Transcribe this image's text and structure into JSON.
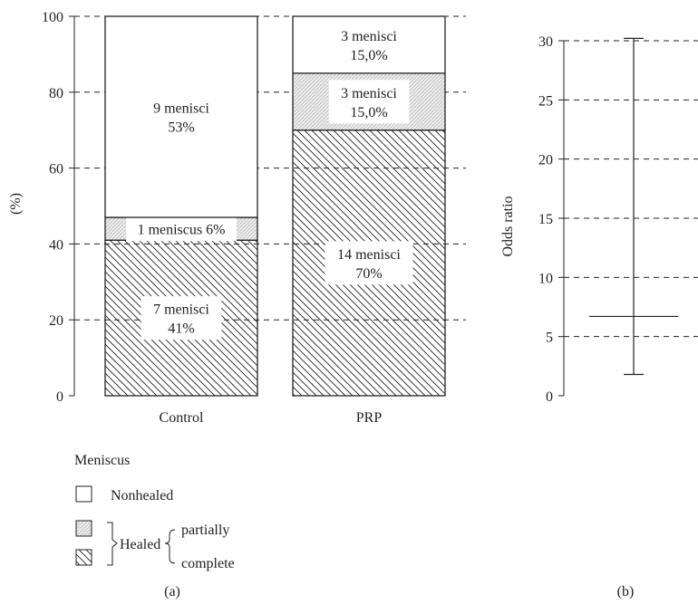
{
  "chart_data": [
    {
      "type": "bar",
      "stacked": true,
      "categories": [
        "Control",
        "PRP"
      ],
      "ylabel": "(%)",
      "ylim": [
        0,
        100
      ],
      "yticks": [
        0,
        20,
        40,
        60,
        80,
        100
      ],
      "grid": "dashed",
      "series": [
        {
          "key": "complete",
          "values": [
            41,
            70
          ],
          "labels": [
            [
              "7 menisci",
              "41%"
            ],
            [
              "14 menisci",
              "70%"
            ]
          ]
        },
        {
          "key": "partial",
          "values": [
            6,
            15
          ],
          "labels": [
            [
              "1 meniscus 6%"
            ],
            [
              "3 menisci",
              "15,0%"
            ]
          ]
        },
        {
          "key": "nonhealed",
          "values": [
            53,
            15
          ],
          "labels": [
            [
              "9 menisci",
              "53%"
            ],
            [
              "3 menisci",
              "15,0%"
            ]
          ]
        }
      ],
      "caption": "(a)"
    },
    {
      "type": "errorbar",
      "ylabel": "Odds ratio",
      "ylim": [
        0,
        30
      ],
      "yticks": [
        0,
        5,
        10,
        15,
        20,
        25,
        30
      ],
      "grid": "dashed",
      "point": 6.7,
      "lower": 1.8,
      "upper": 30.2,
      "caption": "(b)"
    }
  ],
  "legend": {
    "title": "Meniscus",
    "nonhealed": "Nonhealed",
    "healed": "Healed",
    "partially": "partially",
    "complete": "complete"
  }
}
